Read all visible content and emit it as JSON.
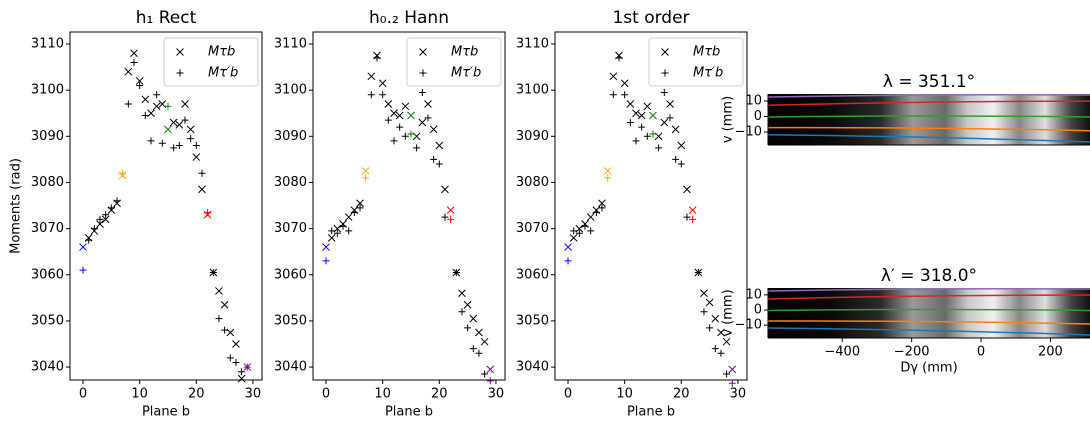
{
  "chart_data": [
    {
      "type": "scatter",
      "title": "h₁ Rect",
      "x_label": "Plane b",
      "y_label": "Moments (rad)",
      "xlim": [
        -2.3,
        31.6
      ],
      "ylim": [
        3037.2,
        3112.6
      ],
      "xticks": [
        0,
        10,
        20,
        30
      ],
      "yticks": [
        3040,
        3050,
        3060,
        3070,
        3080,
        3090,
        3100,
        3110
      ],
      "x": [
        0,
        1,
        2,
        3,
        4,
        5,
        6,
        7,
        8,
        9,
        10,
        11,
        12,
        13,
        14,
        15,
        16,
        17,
        18,
        19,
        20,
        21,
        22,
        23,
        24,
        25,
        26,
        27,
        28,
        29
      ],
      "point_colors": [
        "#0000ff",
        "#000000",
        "#000000",
        "#000000",
        "#000000",
        "#000000",
        "#000000",
        "#ffa500",
        "#000000",
        "#000000",
        "#000000",
        "#000000",
        "#000000",
        "#000000",
        "#000000",
        "#008000",
        "#000000",
        "#000000",
        "#000000",
        "#000000",
        "#000000",
        "#000000",
        "#ff0000",
        "#000000",
        "#000000",
        "#000000",
        "#000000",
        "#000000",
        "#000000",
        "#800080"
      ],
      "series": [
        {
          "name": "Mτb",
          "marker": "x",
          "values": [
            3066,
            3068,
            3069.5,
            3071,
            3072,
            3074,
            3075.5,
            3081.5,
            3104,
            3108,
            3102,
            3098,
            3095,
            3096.5,
            3097,
            3091.5,
            3093,
            3092.5,
            3097,
            3091.5,
            3085.5,
            3078.5,
            3073,
            3060.5,
            3056.5,
            3053.5,
            3047.5,
            3045,
            3037.5,
            3040
          ]
        },
        {
          "name": "Mτ′b",
          "marker": "+",
          "values": [
            3061,
            3067.5,
            3070,
            3072,
            3073,
            3074.5,
            3076,
            3082,
            3097,
            3106,
            3101,
            3094.5,
            3089,
            3099,
            3088.5,
            3096.5,
            3087.5,
            3088,
            3093.5,
            3089.5,
            3088,
            3082,
            3073.5,
            3060.5,
            3050.5,
            3048,
            3042,
            3041,
            3039,
            3040
          ]
        }
      ]
    },
    {
      "type": "scatter",
      "title": "h₀.₂ Hann",
      "x_label": "Plane b",
      "xlim": [
        -2.3,
        31.6
      ],
      "ylim": [
        3037.2,
        3112.6
      ],
      "xticks": [
        0,
        10,
        20,
        30
      ],
      "yticks": [
        3040,
        3050,
        3060,
        3070,
        3080,
        3090,
        3100,
        3110
      ],
      "x": [
        0,
        1,
        2,
        3,
        4,
        5,
        6,
        7,
        8,
        9,
        10,
        11,
        12,
        13,
        14,
        15,
        16,
        17,
        18,
        19,
        20,
        21,
        22,
        23,
        24,
        25,
        26,
        27,
        28,
        29
      ],
      "point_colors": [
        "#0000ff",
        "#000000",
        "#000000",
        "#000000",
        "#000000",
        "#000000",
        "#000000",
        "#ffa500",
        "#000000",
        "#000000",
        "#000000",
        "#000000",
        "#000000",
        "#000000",
        "#000000",
        "#008000",
        "#000000",
        "#000000",
        "#000000",
        "#000000",
        "#000000",
        "#000000",
        "#ff0000",
        "#000000",
        "#000000",
        "#000000",
        "#000000",
        "#000000",
        "#000000",
        "#800080"
      ],
      "series": [
        {
          "name": "Mτb",
          "marker": "x",
          "values": [
            3066,
            3068,
            3070,
            3071,
            3072.5,
            3074,
            3075.5,
            3082.5,
            3103,
            3107.5,
            3101.5,
            3097,
            3095,
            3094.5,
            3096.5,
            3094.5,
            3090,
            3093,
            3097,
            3091.5,
            3088,
            3078.5,
            3074,
            3060.5,
            3056,
            3053.5,
            3050.5,
            3047.5,
            3045.5,
            3039.5
          ]
        },
        {
          "name": "Mτ′b",
          "marker": "+",
          "values": [
            3063,
            3069.5,
            3069,
            3070.5,
            3069.5,
            3073.5,
            3074.5,
            3081,
            3099,
            3107,
            3099,
            3093.5,
            3089,
            3092,
            3090,
            3090.5,
            3087.5,
            3099.5,
            3094,
            3085,
            3084,
            3072.5,
            3072,
            3060.5,
            3052,
            3048.5,
            3044,
            3043,
            3038.5,
            3037
          ]
        }
      ]
    },
    {
      "type": "scatter",
      "title": "1st order",
      "x_label": "Plane b",
      "xlim": [
        -2.3,
        31.6
      ],
      "ylim": [
        3037.2,
        3112.6
      ],
      "xticks": [
        0,
        10,
        20,
        30
      ],
      "yticks": [
        3040,
        3050,
        3060,
        3070,
        3080,
        3090,
        3100,
        3110
      ],
      "x": [
        0,
        1,
        2,
        3,
        4,
        5,
        6,
        7,
        8,
        9,
        10,
        11,
        12,
        13,
        14,
        15,
        16,
        17,
        18,
        19,
        20,
        21,
        22,
        23,
        24,
        25,
        26,
        27,
        28,
        29
      ],
      "point_colors": [
        "#0000ff",
        "#000000",
        "#000000",
        "#000000",
        "#000000",
        "#000000",
        "#000000",
        "#ffa500",
        "#000000",
        "#000000",
        "#000000",
        "#000000",
        "#000000",
        "#000000",
        "#000000",
        "#008000",
        "#000000",
        "#000000",
        "#000000",
        "#000000",
        "#000000",
        "#000000",
        "#ff0000",
        "#000000",
        "#000000",
        "#000000",
        "#000000",
        "#000000",
        "#000000",
        "#800080"
      ],
      "series": [
        {
          "name": "Mτb",
          "marker": "x",
          "values": [
            3066,
            3068,
            3070,
            3071,
            3072.5,
            3074,
            3075.5,
            3082.5,
            3103,
            3107.5,
            3101.5,
            3097,
            3095,
            3094.5,
            3096.5,
            3094.5,
            3090,
            3093,
            3097,
            3091.5,
            3088,
            3078.5,
            3074,
            3060.5,
            3056,
            3054,
            3050.5,
            3047.5,
            3045.5,
            3039.5
          ]
        },
        {
          "name": "Mτ′b",
          "marker": "+",
          "values": [
            3063,
            3069.5,
            3069,
            3070.5,
            3069.5,
            3073.5,
            3074.5,
            3081,
            3099,
            3107,
            3099,
            3093,
            3089,
            3092,
            3090,
            3090.5,
            3087.5,
            3099.5,
            3094,
            3085,
            3084,
            3072.5,
            3072,
            3060.5,
            3052,
            3048.5,
            3044,
            3043,
            3038.5,
            3036.5
          ]
        }
      ]
    },
    {
      "type": "image",
      "title": "λ = 351.1°",
      "y_label": "v (mm)",
      "xlim": [
        -614,
        314
      ],
      "ylim": [
        -18.4,
        14.5
      ],
      "yticks": [
        {
          "value": 10,
          "label": "10"
        },
        0,
        {
          "value": -10,
          "label": "−10"
        }
      ]
    },
    {
      "type": "image",
      "title": "λ′ = 318.0°",
      "y_label": "v (mm)",
      "x_label": "Dγ (mm)",
      "xlim": [
        -614,
        314
      ],
      "ylim": [
        -18.4,
        14.5
      ],
      "yticks": [
        {
          "value": 10,
          "label": "10"
        },
        0,
        {
          "value": -10,
          "label": "−10"
        }
      ],
      "xticks": [
        {
          "value": -400,
          "label": "−400"
        },
        {
          "value": -200,
          "label": "−200"
        },
        0,
        200
      ]
    }
  ]
}
